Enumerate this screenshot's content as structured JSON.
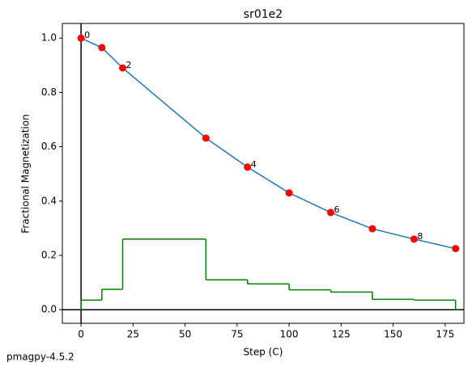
{
  "chart_data": {
    "type": "line",
    "title": "sr01e2",
    "xlabel": "Step (C)",
    "ylabel": "Fractional Magnetization",
    "footer": "pmagpy-4.5.2",
    "x": [
      0,
      10,
      20,
      60,
      80,
      100,
      120,
      140,
      160,
      180
    ],
    "series": [
      {
        "color": "#1f77b4",
        "marker_color": "#ff0000",
        "values": [
          1.0,
          0.965,
          0.89,
          0.632,
          0.525,
          0.43,
          0.358,
          0.298,
          0.26,
          0.225
        ],
        "point_labels": [
          "0",
          null,
          "2",
          null,
          "4",
          null,
          "6",
          null,
          "8",
          null
        ]
      }
    ],
    "steps": {
      "color": "#008000",
      "bins": [
        0,
        10,
        20,
        60,
        80,
        100,
        120,
        140,
        160,
        180
      ],
      "values": [
        0.035,
        0.075,
        0.26,
        0.11,
        0.095,
        0.073,
        0.065,
        0.038,
        0.035
      ]
    },
    "xlim": [
      -9,
      184
    ],
    "ylim": [
      -0.05,
      1.054
    ],
    "xticks": [
      0,
      25,
      50,
      75,
      100,
      125,
      150,
      175
    ],
    "yticks": [
      {
        "value": 0,
        "label": "0.0"
      },
      {
        "value": 0.2,
        "label": "0.2"
      },
      {
        "value": 0.4,
        "label": "0.4"
      },
      {
        "value": 0.6,
        "label": "0.6"
      },
      {
        "value": 0.8,
        "label": "0.8"
      },
      {
        "value": 1.0,
        "label": "1.0"
      }
    ]
  }
}
